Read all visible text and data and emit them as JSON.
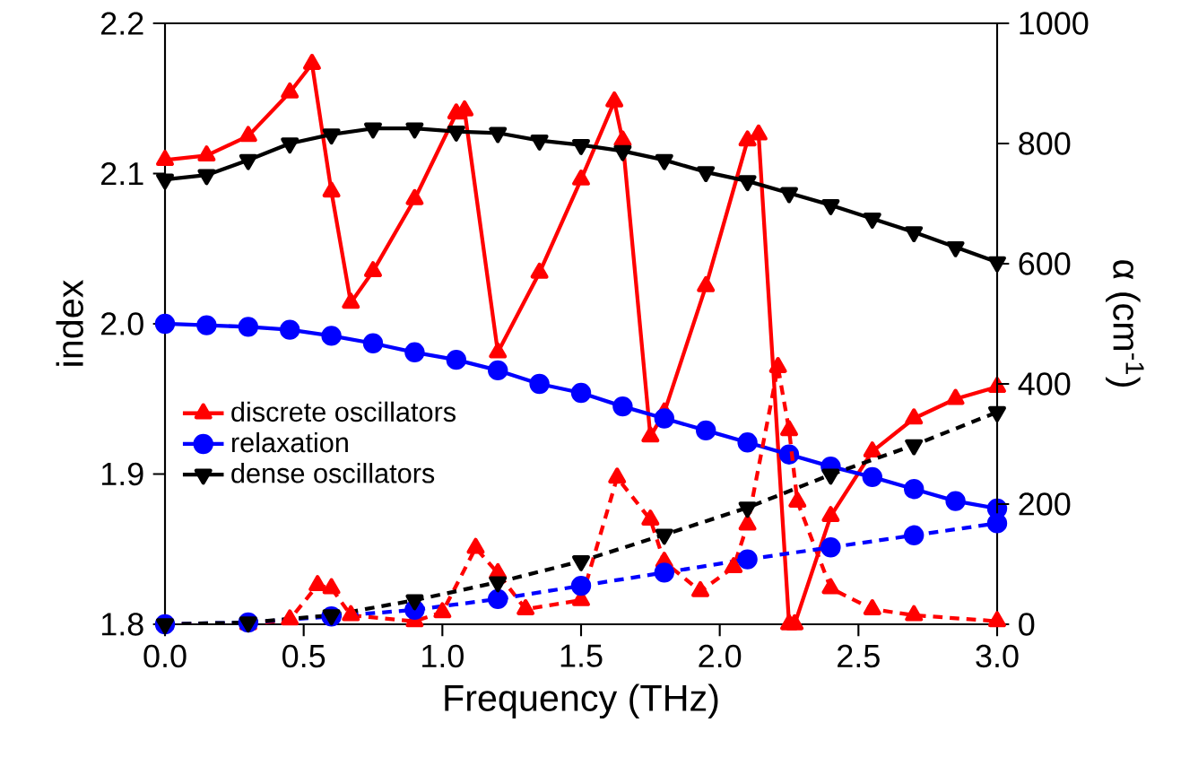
{
  "chart_data": {
    "type": "line",
    "xlabel": "Frequency (THz)",
    "ylabel": "index",
    "y2label": "α (cm$^{-1}$)",
    "xlim": [
      0,
      3
    ],
    "xticks": [
      {
        "value": 0,
        "label": "0.0"
      },
      0.5,
      {
        "value": 1,
        "label": "1.0"
      },
      1.5,
      {
        "value": 2,
        "label": "2.0"
      },
      2.5,
      {
        "value": 3,
        "label": "3.0"
      }
    ],
    "ylim": [
      1.8,
      2.2
    ],
    "yticks": [
      1.8,
      1.9,
      {
        "value": 2,
        "label": "2.0"
      },
      2.1,
      2.2
    ],
    "y2lim": [
      0,
      1000
    ],
    "y2ticks": [
      0,
      200,
      400,
      600,
      800,
      1000
    ],
    "legend": "left",
    "grid": false,
    "series": [
      {
        "name": "discrete oscillators",
        "color": "#ff0000",
        "marker": "triangle",
        "line_style": "solid",
        "x": [
          0,
          0.15,
          0.3,
          0.45,
          0.53,
          0.6,
          0.67,
          0.75,
          0.9,
          1.05,
          1.08,
          1.2,
          1.35,
          1.5,
          1.62,
          1.65,
          1.75,
          1.8,
          1.95,
          2.1,
          2.14,
          2.25,
          2.27,
          2.4,
          2.55,
          2.7,
          2.85,
          3.0
        ],
        "values": [
          2.109,
          2.112,
          2.125,
          2.154,
          2.173,
          2.088,
          2.014,
          2.035,
          2.083,
          2.14,
          2.142,
          1.981,
          2.034,
          2.096,
          2.148,
          2.122,
          1.925,
          1.941,
          2.025,
          2.122,
          2.126,
          1.8,
          1.8,
          1.872,
          1.915,
          1.937,
          1.95,
          1.958
        ]
      },
      {
        "name": "relaxation",
        "color": "#0000ff",
        "marker": "circle",
        "line_style": "solid",
        "x": [
          0,
          0.15,
          0.3,
          0.45,
          0.6,
          0.75,
          0.9,
          1.05,
          1.2,
          1.35,
          1.5,
          1.65,
          1.8,
          1.95,
          2.1,
          2.25,
          2.4,
          2.55,
          2.7,
          2.85,
          3.0
        ],
        "values": [
          2.0,
          1.999,
          1.998,
          1.996,
          1.992,
          1.987,
          1.981,
          1.976,
          1.969,
          1.96,
          1.954,
          1.945,
          1.937,
          1.929,
          1.921,
          1.913,
          1.905,
          1.898,
          1.89,
          1.882,
          1.877
        ]
      },
      {
        "name": "dense oscillators",
        "color": "#000000",
        "marker": "triangle-down",
        "line_style": "solid",
        "x": [
          0,
          0.15,
          0.3,
          0.45,
          0.6,
          0.75,
          0.9,
          1.05,
          1.2,
          1.35,
          1.5,
          1.65,
          1.8,
          1.95,
          2.1,
          2.25,
          2.4,
          2.55,
          2.7,
          2.85,
          3.0
        ],
        "values": [
          2.096,
          2.099,
          2.109,
          2.12,
          2.126,
          2.13,
          2.13,
          2.128,
          2.127,
          2.122,
          2.119,
          2.115,
          2.109,
          2.101,
          2.095,
          2.087,
          2.079,
          2.07,
          2.061,
          2.051,
          2.041
        ]
      },
      {
        "color": "#ff0000",
        "marker": "triangle",
        "line_style": "dashed",
        "axis": "y2",
        "x": [
          0,
          0.3,
          0.45,
          0.55,
          0.6,
          0.67,
          0.9,
          1.0,
          1.12,
          1.2,
          1.3,
          1.5,
          1.63,
          1.75,
          1.8,
          1.93,
          2.05,
          2.1,
          2.21,
          2.25,
          2.28,
          2.4,
          2.55,
          2.7,
          3.0
        ],
        "values": [
          0,
          0,
          8,
          65,
          60,
          15,
          5,
          20,
          127,
          85,
          25,
          40,
          244,
          174,
          104,
          55,
          95,
          166,
          428,
          323,
          204,
          60,
          25,
          15,
          5
        ]
      },
      {
        "color": "#0000ff",
        "marker": "circle",
        "line_style": "dashed",
        "axis": "y2",
        "x": [
          0,
          0.3,
          0.6,
          0.9,
          1.2,
          1.5,
          1.8,
          2.1,
          2.4,
          2.7,
          3.0
        ],
        "values": [
          0,
          3,
          13,
          24,
          42,
          64,
          86,
          108,
          128,
          148,
          168
        ]
      },
      {
        "color": "#000000",
        "marker": "triangle-down",
        "line_style": "dashed",
        "axis": "y2",
        "x": [
          0,
          0.3,
          0.6,
          0.9,
          1.2,
          1.5,
          1.8,
          2.1,
          2.4,
          2.7,
          3.0
        ],
        "values": [
          0,
          3,
          15,
          40,
          70,
          105,
          149,
          194,
          249,
          298,
          353
        ]
      }
    ]
  }
}
